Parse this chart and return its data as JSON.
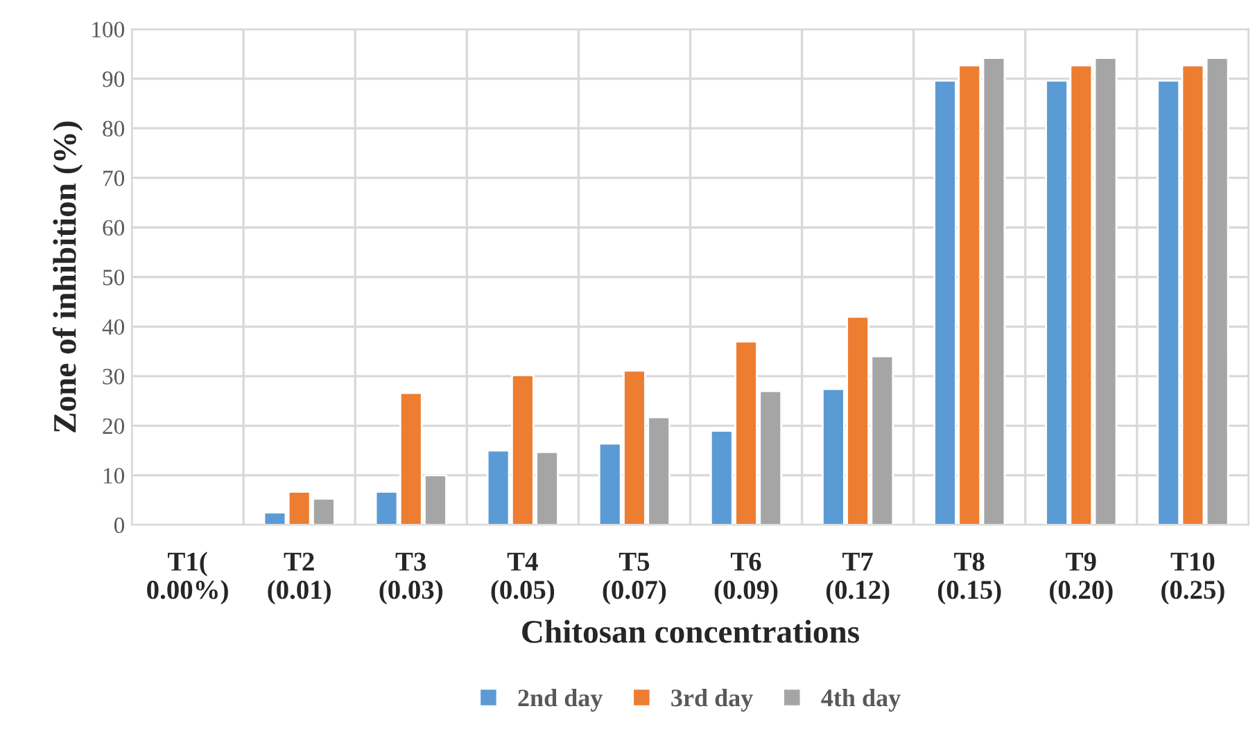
{
  "chart_data": {
    "type": "bar",
    "xlabel": "Chitosan concentrations",
    "ylabel": "Zone of inhibition (%)",
    "categories": [
      "T1(\n0.00%)",
      "T2\n(0.01)",
      "T3\n(0.03)",
      "T4\n(0.05)",
      "T5\n(0.07)",
      "T6\n(0.09)",
      "T7\n(0.12)",
      "T8\n(0.15)",
      "T9\n(0.20)",
      "T10\n(0.25)"
    ],
    "series": [
      {
        "name": "2nd day",
        "color": "#5b9bd5",
        "values": [
          null,
          2.5,
          6.7,
          15,
          16.4,
          19,
          27.4,
          89.6,
          89.6,
          89.6
        ]
      },
      {
        "name": "3rd day",
        "color": "#ed7d31",
        "values": [
          null,
          6.7,
          26.6,
          30.2,
          31.1,
          37,
          42,
          92.7,
          92.7,
          92.7
        ]
      },
      {
        "name": "4th day",
        "color": "#a5a5a5",
        "values": [
          null,
          5.3,
          10,
          14.7,
          21.7,
          27,
          34,
          94.2,
          94.2,
          94.2
        ]
      }
    ],
    "ylim": [
      0,
      100
    ],
    "yticks": [
      0,
      10,
      20,
      30,
      40,
      50,
      60,
      70,
      80,
      90,
      100
    ],
    "grid": true,
    "legend": "bottom"
  }
}
